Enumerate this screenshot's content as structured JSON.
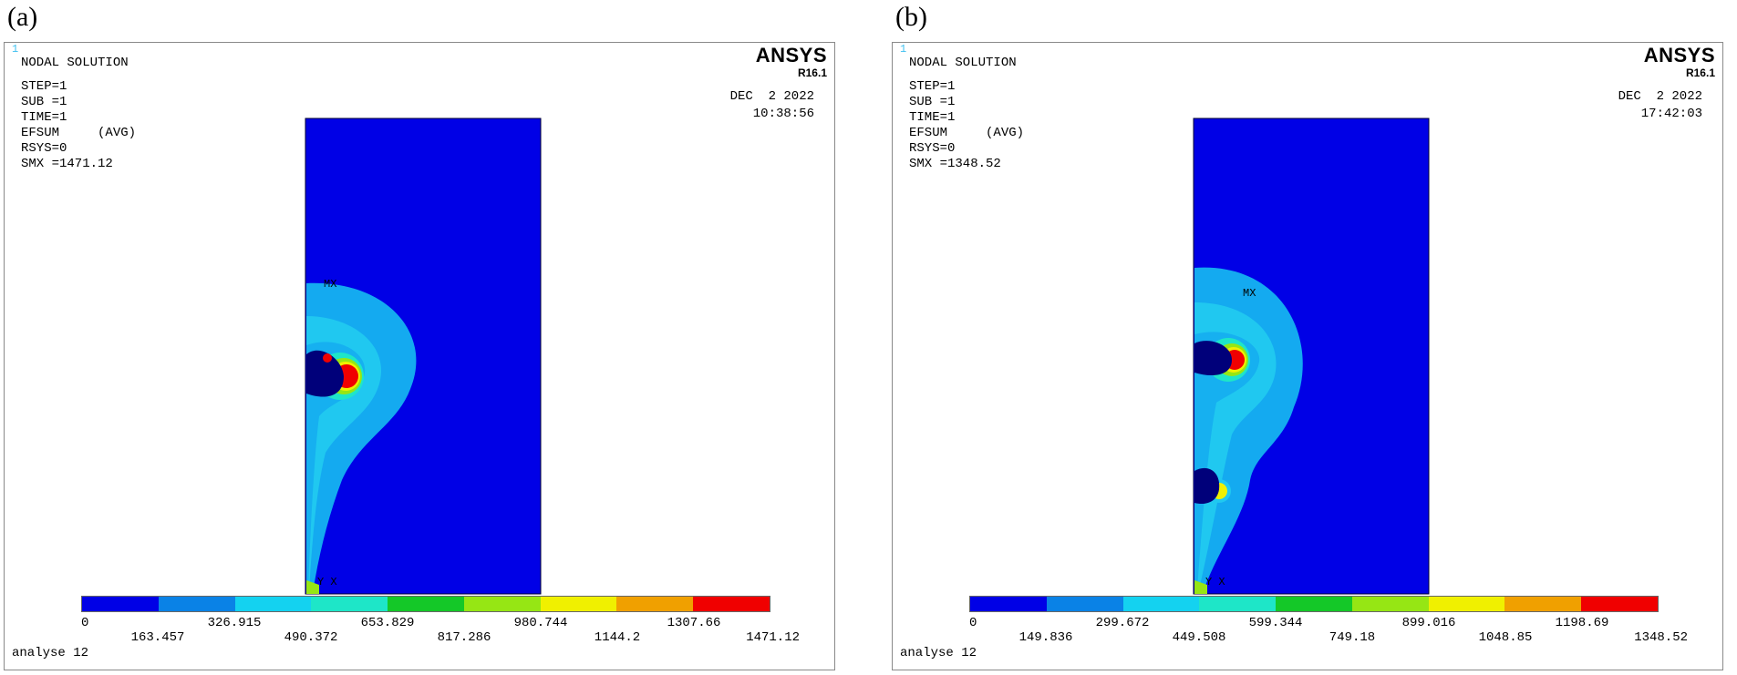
{
  "panels": [
    {
      "tag": "(a)",
      "corner": "1",
      "info": [
        "NODAL SOLUTION",
        "STEP=1",
        "SUB =1",
        "TIME=1",
        "EFSUM     (AVG)",
        "RSYS=0",
        "SMX =1471.12"
      ],
      "brand": "ANSYS",
      "version": "R16.1",
      "date": "DEC  2 2022",
      "time": "10:38:56",
      "mx_label": "MX",
      "axis_label": "Y X",
      "legend_values": [
        "0",
        "163.457",
        "326.915",
        "490.372",
        "653.829",
        "817.286",
        "980.744",
        "1144.2",
        "1307.66",
        "1471.12"
      ],
      "footer": "analyse 12"
    },
    {
      "tag": "(b)",
      "corner": "1",
      "info": [
        "NODAL SOLUTION",
        "STEP=1",
        "SUB =1",
        "TIME=1",
        "EFSUM     (AVG)",
        "RSYS=0",
        "SMX =1348.52"
      ],
      "brand": "ANSYS",
      "version": "R16.1",
      "date": "DEC  2 2022",
      "time": "17:42:03",
      "mx_label": "MX",
      "axis_label": "Y X",
      "legend_values": [
        "0",
        "149.836",
        "299.672",
        "449.508",
        "599.344",
        "749.18",
        "899.016",
        "1048.85",
        "1198.69",
        "1348.52"
      ],
      "footer": "analyse 12"
    }
  ],
  "legend_colors": [
    "#0000e6",
    "#0a82e6",
    "#14d2f0",
    "#1ee6c8",
    "#14c828",
    "#96e614",
    "#f0f000",
    "#f0a000",
    "#f00000"
  ]
}
